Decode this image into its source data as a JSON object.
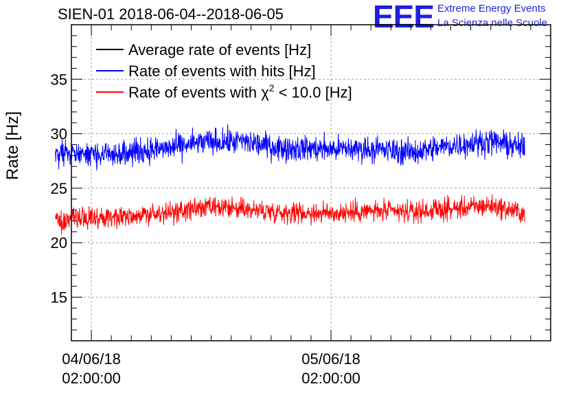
{
  "header": {
    "title": "SIEN-01 2018-06-04--2018-06-05"
  },
  "logo": {
    "mark": "EEE",
    "line1": "Extreme Energy Events",
    "line2": "La Scienza nelle Scuole",
    "color": "#1f1fe0"
  },
  "chart_data": {
    "type": "line",
    "title": "SIEN-01 2018-06-04--2018-06-05",
    "ylabel": "Rate [Hz]",
    "xlabel": "",
    "ylim": [
      11,
      40
    ],
    "yticks": [
      15,
      20,
      25,
      30,
      35
    ],
    "grid": true,
    "legend_position": "top-left",
    "x_unit": "hours since 2018-06-04 00:00",
    "xlim": [
      0,
      48
    ],
    "xticks": [
      {
        "hour": 2,
        "label_date": "04/06/18",
        "label_time": "02:00:00"
      },
      {
        "hour": 26,
        "label_date": "05/06/18",
        "label_time": "02:00:00"
      }
    ],
    "x_minor_every_hours": 2,
    "series": [
      {
        "name": "Average rate of events [Hz]",
        "legend_label": "Average rate of events [Hz]",
        "color": "#000000",
        "values": []
      },
      {
        "name": "Rate of events with hits [Hz]",
        "legend_label": "Rate of events with hits [Hz]",
        "color": "#0000ff",
        "x_start": -1.6,
        "x_end": 45.4,
        "baseline": [
          {
            "x": -1.6,
            "y": 28.0
          },
          {
            "x": 2,
            "y": 28.2
          },
          {
            "x": 6,
            "y": 28.3
          },
          {
            "x": 10,
            "y": 28.7
          },
          {
            "x": 13,
            "y": 29.2
          },
          {
            "x": 17,
            "y": 29.3
          },
          {
            "x": 21,
            "y": 28.7
          },
          {
            "x": 26,
            "y": 28.6
          },
          {
            "x": 30,
            "y": 28.6
          },
          {
            "x": 34,
            "y": 28.3
          },
          {
            "x": 38,
            "y": 28.9
          },
          {
            "x": 42,
            "y": 29.3
          },
          {
            "x": 45.4,
            "y": 28.7
          }
        ],
        "noise_amplitude": 1.1
      },
      {
        "name": "Rate of events with χ2 < 10.0 [Hz]",
        "legend_label_prefix": "Rate of events with ",
        "legend_label_chi": "χ",
        "legend_label_sup": "2",
        "legend_label_suffix": " < 10.0 [Hz]",
        "color": "#ff0000",
        "x_start": -1.6,
        "x_end": 45.4,
        "baseline": [
          {
            "x": -1.6,
            "y": 22.0
          },
          {
            "x": 2,
            "y": 22.3
          },
          {
            "x": 6,
            "y": 22.5
          },
          {
            "x": 10,
            "y": 22.7
          },
          {
            "x": 13,
            "y": 23.2
          },
          {
            "x": 17,
            "y": 23.1
          },
          {
            "x": 21,
            "y": 22.8
          },
          {
            "x": 26,
            "y": 22.7
          },
          {
            "x": 30,
            "y": 22.9
          },
          {
            "x": 34,
            "y": 22.8
          },
          {
            "x": 38,
            "y": 23.1
          },
          {
            "x": 42,
            "y": 23.4
          },
          {
            "x": 45.4,
            "y": 22.7
          }
        ],
        "noise_amplitude": 0.9
      }
    ]
  }
}
